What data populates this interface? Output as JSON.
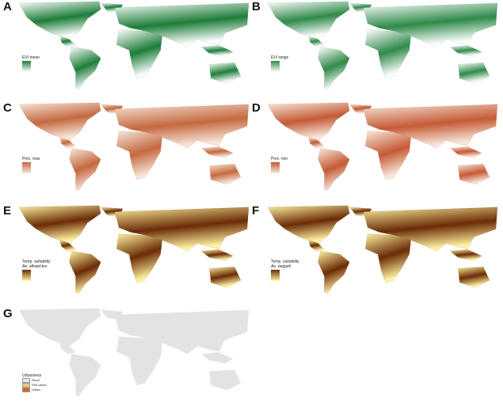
{
  "panels": [
    {
      "letter": "A",
      "legend": "EVI mean",
      "colors": [
        "#ffffff",
        "#1e7d3a"
      ]
    },
    {
      "letter": "B",
      "legend": "EVI range",
      "colors": [
        "#ffffff",
        "#2f8a4a"
      ]
    },
    {
      "letter": "C",
      "legend": "Prec. max",
      "colors": [
        "#f7e6da",
        "#c4693f"
      ]
    },
    {
      "letter": "D",
      "legend": "Prec. min",
      "colors": [
        "#f8e8dc",
        "#c45a35"
      ]
    },
    {
      "letter": "E",
      "legend": "Temp. suitability",
      "legend2": "Ae. albopictus",
      "colors": [
        "#fff3a0",
        "#6b2b06"
      ]
    },
    {
      "letter": "F",
      "legend": "Temp. suitability",
      "legend2": "Ae. aegypti",
      "colors": [
        "#fff3a0",
        "#6b2b06"
      ]
    },
    {
      "letter": "G",
      "legend": "Urbanness",
      "colors": [
        "#e3e3e3",
        "#e3e3e3"
      ],
      "categories": [
        {
          "label": "Rural",
          "color": "#e8e8e0"
        },
        {
          "label": "Peri-urban",
          "color": "#f3c77a"
        },
        {
          "label": "Urban",
          "color": "#e0641c"
        }
      ]
    }
  ]
}
